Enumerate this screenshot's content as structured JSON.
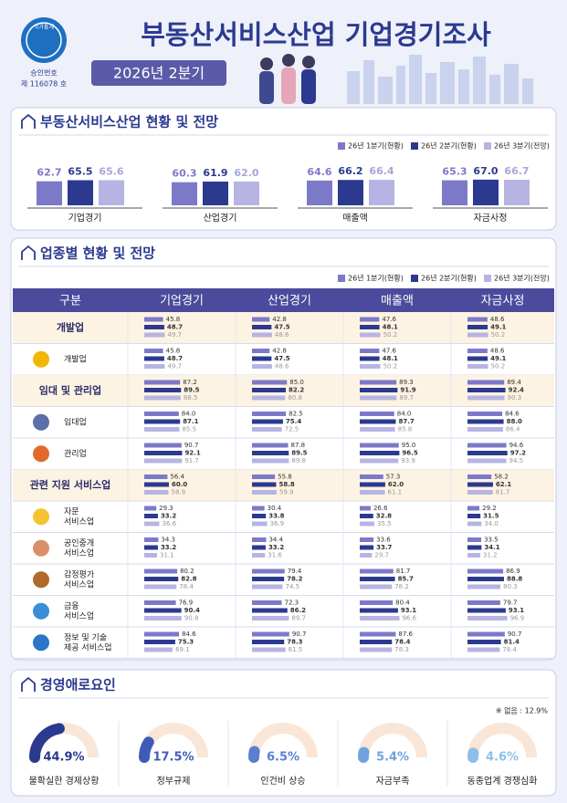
{
  "header": {
    "logo_text": "국가통계",
    "approval_label": "승인번호",
    "approval_number": "제 116078 호",
    "title": "부동산서비스산업 기업경기조사",
    "period": "2026년 2분기"
  },
  "colors": [
    "#7d79c9",
    "#2b3a8f",
    "#b7b4e3"
  ],
  "summary": {
    "title": "부동산서비스산업 현황 및 전망",
    "legend": [
      "26년 1분기(현황)",
      "26년 2분기(현황)",
      "26년 3분기(전망)"
    ],
    "groups": [
      {
        "name": "기업경기",
        "values": [
          62.7,
          65.5,
          65.6
        ],
        "value_labels": [
          "62.7",
          "65.5",
          "65.6"
        ]
      },
      {
        "name": "산업경기",
        "values": [
          60.3,
          61.9,
          62.0
        ],
        "value_labels": [
          "60.3",
          "61.9",
          "62.0"
        ]
      },
      {
        "name": "매출액",
        "values": [
          64.6,
          66.2,
          66.4
        ],
        "value_labels": [
          "64.6",
          "66.2",
          "66.4"
        ]
      },
      {
        "name": "자금사정",
        "values": [
          65.3,
          67.0,
          66.7
        ],
        "value_labels": [
          "65.3",
          "67.0",
          "66.7"
        ]
      }
    ]
  },
  "industry": {
    "title": "업종별 현황 및 전망",
    "legend": [
      "26년 1분기(현황)",
      "26년 2분기(현황)",
      "26년 3분기(전망)"
    ],
    "columns": [
      "구분",
      "기업경기",
      "산업경기",
      "매출액",
      "자금사정"
    ],
    "rows": [
      {
        "kind": "category",
        "name": "개발업",
        "values": [
          [
            45.8,
            48.7,
            49.7
          ],
          [
            42.8,
            47.5,
            48.6
          ],
          [
            47.6,
            48.1,
            50.2
          ],
          [
            48.6,
            49.1,
            50.2
          ]
        ],
        "value_labels": [
          [
            "45.8",
            "48.7",
            "49.7"
          ],
          [
            "42.8",
            "47.5",
            "48.6"
          ],
          [
            "47.6",
            "48.1",
            "50.2"
          ],
          [
            "48.6",
            "49.1",
            "50.2"
          ]
        ]
      },
      {
        "kind": "sub",
        "name": [
          "개발업"
        ],
        "values": [
          [
            45.8,
            48.7,
            49.7
          ],
          [
            42.8,
            47.5,
            48.6
          ],
          [
            47.6,
            48.1,
            50.2
          ],
          [
            48.6,
            49.1,
            50.2
          ]
        ],
        "value_labels": [
          [
            "45.8",
            "48.7",
            "49.7"
          ],
          [
            "42.8",
            "47.5",
            "48.6"
          ],
          [
            "47.6",
            "48.1",
            "50.2"
          ],
          [
            "48.6",
            "49.1",
            "50.2"
          ]
        ]
      },
      {
        "kind": "category",
        "name": "임대 및 관리업",
        "values": [
          [
            87.2,
            89.5,
            88.5
          ],
          [
            85.0,
            82.2,
            80.8
          ],
          [
            89.3,
            91.9,
            89.7
          ],
          [
            89.4,
            92.4,
            90.3
          ]
        ],
        "value_labels": [
          [
            "87.2",
            "89.5",
            "88.5"
          ],
          [
            "85.0",
            "82.2",
            "80.8"
          ],
          [
            "89.3",
            "91.9",
            "89.7"
          ],
          [
            "89.4",
            "92.4",
            "90.3"
          ]
        ]
      },
      {
        "kind": "sub",
        "name": [
          "임대업"
        ],
        "values": [
          [
            84.0,
            87.1,
            85.5
          ],
          [
            82.5,
            75.4,
            72.5
          ],
          [
            84.0,
            87.7,
            85.8
          ],
          [
            84.6,
            88.0,
            86.4
          ]
        ],
        "value_labels": [
          [
            "84.0",
            "87.1",
            "85.5"
          ],
          [
            "82.5",
            "75.4",
            "72.5"
          ],
          [
            "84.0",
            "87.7",
            "85.8"
          ],
          [
            "84.6",
            "88.0",
            "86.4"
          ]
        ]
      },
      {
        "kind": "sub",
        "name": [
          "관리업"
        ],
        "values": [
          [
            90.7,
            92.1,
            91.7
          ],
          [
            87.8,
            89.5,
            89.8
          ],
          [
            95.0,
            96.5,
            93.9
          ],
          [
            94.6,
            97.2,
            94.5
          ]
        ],
        "value_labels": [
          [
            "90.7",
            "92.1",
            "91.7"
          ],
          [
            "87.8",
            "89.5",
            "89.8"
          ],
          [
            "95.0",
            "96.5",
            "93.9"
          ],
          [
            "94.6",
            "97.2",
            "94.5"
          ]
        ]
      },
      {
        "kind": "category",
        "name": "관련 지원 서비스업",
        "values": [
          [
            56.4,
            60.0,
            58.9
          ],
          [
            55.8,
            58.8,
            59.9
          ],
          [
            57.3,
            62.0,
            61.1
          ],
          [
            58.2,
            62.1,
            61.7
          ]
        ],
        "value_labels": [
          [
            "56.4",
            "60.0",
            "58.9"
          ],
          [
            "55.8",
            "58.8",
            "59.9"
          ],
          [
            "57.3",
            "62.0",
            "61.1"
          ],
          [
            "58.2",
            "62.1",
            "61.7"
          ]
        ]
      },
      {
        "kind": "sub",
        "name": [
          "자문",
          "서비스업"
        ],
        "values": [
          [
            29.3,
            33.2,
            36.6
          ],
          [
            30.4,
            33.8,
            36.9
          ],
          [
            26.6,
            32.8,
            35.5
          ],
          [
            29.2,
            31.5,
            34.0
          ]
        ],
        "value_labels": [
          [
            "29.3",
            "33.2",
            "36.6"
          ],
          [
            "30.4",
            "33.8",
            "36.9"
          ],
          [
            "26.6",
            "32.8",
            "35.5"
          ],
          [
            "29.2",
            "31.5",
            "34.0"
          ]
        ]
      },
      {
        "kind": "sub",
        "name": [
          "공인중개",
          "서비스업"
        ],
        "values": [
          [
            34.3,
            33.2,
            31.1
          ],
          [
            34.4,
            33.2,
            31.6
          ],
          [
            33.6,
            33.7,
            29.7
          ],
          [
            33.5,
            34.1,
            31.2
          ]
        ],
        "value_labels": [
          [
            "34.3",
            "33.2",
            "31.1"
          ],
          [
            "34.4",
            "33.2",
            "31.6"
          ],
          [
            "33.6",
            "33.7",
            "29.7"
          ],
          [
            "33.5",
            "34.1",
            "31.2"
          ]
        ]
      },
      {
        "kind": "sub",
        "name": [
          "감정평가",
          "서비스업"
        ],
        "values": [
          [
            80.2,
            82.8,
            78.4
          ],
          [
            79.4,
            78.2,
            74.5
          ],
          [
            81.7,
            85.7,
            78.2
          ],
          [
            86.9,
            88.8,
            80.3
          ]
        ],
        "value_labels": [
          [
            "80.2",
            "82.8",
            "78.4"
          ],
          [
            "79.4",
            "78.2",
            "74.5"
          ],
          [
            "81.7",
            "85.7",
            "78.2"
          ],
          [
            "86.9",
            "88.8",
            "80.3"
          ]
        ]
      },
      {
        "kind": "sub",
        "name": [
          "금융",
          "서비스업"
        ],
        "values": [
          [
            76.9,
            90.4,
            90.8
          ],
          [
            72.3,
            86.2,
            89.7
          ],
          [
            80.4,
            93.1,
            96.6
          ],
          [
            79.7,
            93.1,
            96.9
          ]
        ],
        "value_labels": [
          [
            "76.9",
            "90.4",
            "90.8"
          ],
          [
            "72.3",
            "86.2",
            "89.7"
          ],
          [
            "80.4",
            "93.1",
            "96.6"
          ],
          [
            "79.7",
            "93.1",
            "96.9"
          ]
        ]
      },
      {
        "kind": "sub",
        "name": [
          "정보 및 기술",
          "제공 서비스업"
        ],
        "values": [
          [
            84.6,
            75.3,
            69.1
          ],
          [
            90.7,
            78.3,
            81.5
          ],
          [
            87.6,
            78.4,
            78.3
          ],
          [
            90.7,
            81.4,
            78.4
          ]
        ],
        "value_labels": [
          [
            "84.6",
            "75.3",
            "69.1"
          ],
          [
            "90.7",
            "78.3",
            "81.5"
          ],
          [
            "87.6",
            "78.4",
            "78.3"
          ],
          [
            "90.7",
            "81.4",
            "78.4"
          ]
        ]
      }
    ]
  },
  "obstacles": {
    "title": "경영애로요인",
    "note": "※ 없음 : 12.9%",
    "colors": [
      "#2b3a8f",
      "#3f5bb8",
      "#5a7fd0",
      "#6fa3e0",
      "#8cc0ea"
    ],
    "items": [
      {
        "name": "불확실한 경제상황",
        "value": 44.9,
        "value_label": "44.9%"
      },
      {
        "name": "정부규제",
        "value": 17.5,
        "value_label": "17.5%"
      },
      {
        "name": "인건비 상승",
        "value": 6.5,
        "value_label": "6.5%"
      },
      {
        "name": "자금부족",
        "value": 5.4,
        "value_label": "5.4%"
      },
      {
        "name": "동종업계 경쟁심화",
        "value": 4.6,
        "value_label": "4.6%"
      }
    ]
  }
}
